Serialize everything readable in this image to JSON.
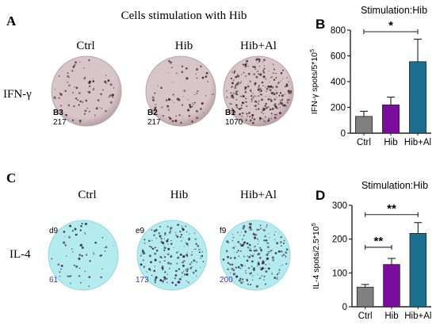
{
  "panelA": {
    "letter": "A",
    "title": "Cells stimulation with Hib",
    "row_label": "IFN-γ",
    "wells": [
      {
        "header": "Ctrl",
        "id": "B3",
        "count": "217",
        "spots": 70
      },
      {
        "header": "Hib",
        "id": "B2",
        "count": "217",
        "spots": 70
      },
      {
        "header": "Hib+Al",
        "id": "B1",
        "count": "1070",
        "spots": 260
      }
    ],
    "colors": {
      "well": "#d7c5c8",
      "edge": "#b9a2a6",
      "spot": "#4a2838"
    }
  },
  "panelC": {
    "letter": "C",
    "row_label": "IL-4",
    "wells": [
      {
        "header": "Ctrl",
        "id": "d9",
        "count": "61",
        "spots": 61
      },
      {
        "header": "Hib",
        "id": "e9",
        "count": "173",
        "spots": 173
      },
      {
        "header": "Hib+Al",
        "id": "f9",
        "count": "200",
        "spots": 200
      }
    ],
    "colors": {
      "well": "#b4ebee",
      "edge": "#90d8dd",
      "spot": "#3a2a4a",
      "count_text": "#3333cc"
    }
  },
  "chart_data": [
    {
      "letter": "B",
      "type": "bar",
      "title": "Stimulation:Hib",
      "ylabel": "IFN-γ spots/5*10",
      "ylabel_exp": "5",
      "categories": [
        "Ctrl",
        "Hib",
        "Hib+Al"
      ],
      "values": [
        130,
        220,
        555
      ],
      "errors": [
        40,
        60,
        175
      ],
      "colors": [
        "#808080",
        "#7a0c9e",
        "#1c6f90"
      ],
      "ylim": [
        0,
        800
      ],
      "yticks": [
        "0",
        "200",
        "400",
        "600",
        "800"
      ],
      "significance": [
        {
          "from": 0,
          "to": 2,
          "label": "*"
        }
      ]
    },
    {
      "letter": "D",
      "type": "bar",
      "title": "Stimulation:Hib",
      "ylabel": "IL-4 spots/2.5*10",
      "ylabel_exp": "5",
      "categories": [
        "Ctrl",
        "Hib",
        "Hib+Al"
      ],
      "values": [
        58,
        125,
        217
      ],
      "errors": [
        8,
        18,
        32
      ],
      "colors": [
        "#808080",
        "#7a0c9e",
        "#1c6f90"
      ],
      "ylim": [
        0,
        300
      ],
      "yticks": [
        "0",
        "100",
        "200",
        "300"
      ],
      "significance": [
        {
          "from": 0,
          "to": 1,
          "label": "**"
        },
        {
          "from": 0,
          "to": 2,
          "label": "**"
        }
      ]
    }
  ]
}
